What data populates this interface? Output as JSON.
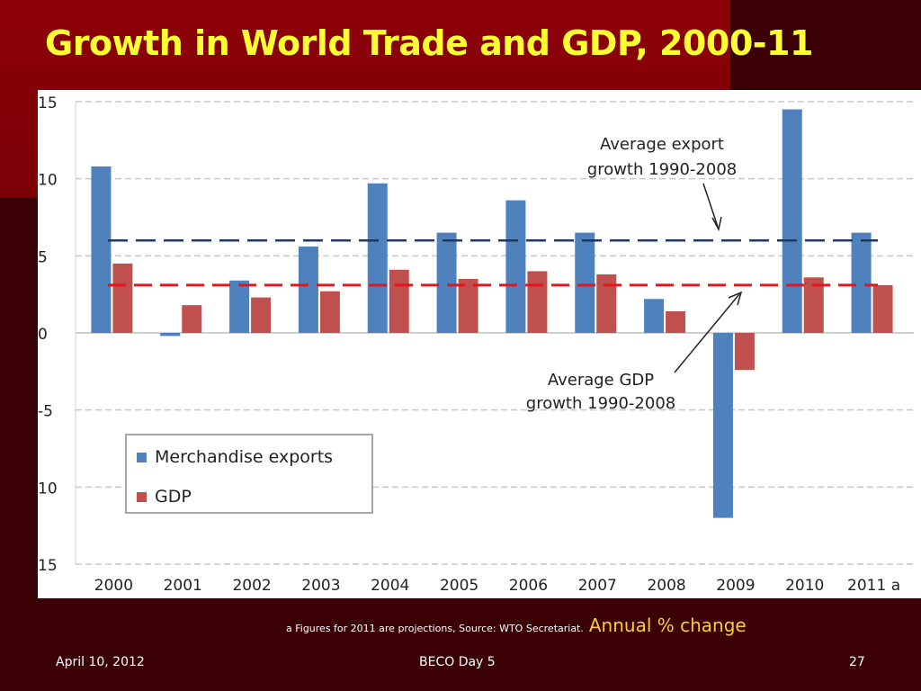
{
  "slide": {
    "title": "Growth in World Trade and GDP, 2000-11",
    "footnote_small": "a  Figures for 2011 are projections, Source: WTO Secretariat.",
    "footnote_big": "Annual % change",
    "footer_date": "April 10, 2012",
    "footer_center": "BECO Day 5",
    "page_number": "27"
  },
  "chart_data": {
    "type": "bar",
    "categories": [
      "2000",
      "2001",
      "2002",
      "2003",
      "2004",
      "2005",
      "2006",
      "2007",
      "2008",
      "2009",
      "2010",
      "2011 a"
    ],
    "series": [
      {
        "name": "Merchandise exports",
        "color": "#4f81bd",
        "values": [
          10.8,
          -0.2,
          3.4,
          5.6,
          9.7,
          6.5,
          8.6,
          6.5,
          2.2,
          -12.0,
          14.5,
          6.5
        ]
      },
      {
        "name": "GDP",
        "color": "#c0504d",
        "values": [
          4.5,
          1.8,
          2.3,
          2.7,
          4.1,
          3.5,
          4.0,
          3.8,
          1.4,
          -2.4,
          3.6,
          3.1
        ]
      }
    ],
    "ylim": [
      -15,
      15
    ],
    "yticks": [
      "15",
      "10",
      "5",
      "0",
      "-5",
      "10",
      "15"
    ],
    "grid": true,
    "reference_lines": [
      {
        "label_line1": "Average export",
        "label_line2": "growth 1990-2008",
        "value": 6.0,
        "color": "#1f3864"
      },
      {
        "label_line1": "Average GDP",
        "label_line2": "growth 1990-2008",
        "value": 3.1,
        "color": "#e8141a"
      }
    ],
    "legend_position": "bottom-left"
  }
}
